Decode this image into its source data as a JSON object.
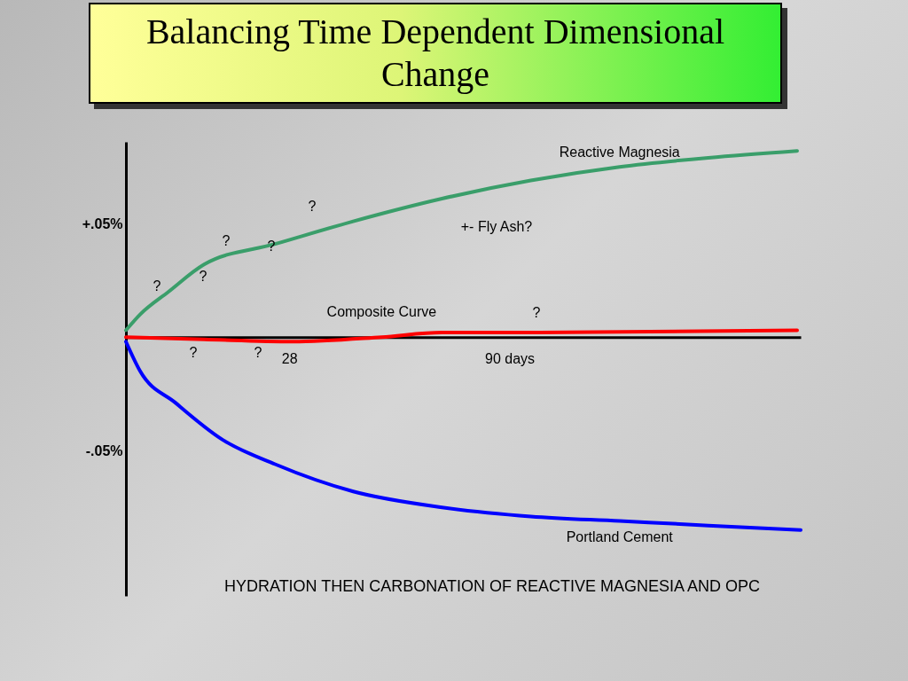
{
  "chart_data": {
    "type": "line",
    "title": "Balancing Time Dependent Dimensional Change",
    "xlim": [
      -18,
      172
    ],
    "xticks": [
      {
        "value": 28,
        "label": "28"
      },
      {
        "value": 90,
        "label": "90 days"
      }
    ],
    "ylim": [
      -0.114,
      0.086
    ],
    "yticks": [
      {
        "value": 0.05,
        "label": "+.05%"
      },
      {
        "value": -0.05,
        "label": "-.05%"
      }
    ],
    "series": [
      {
        "name": "Reactive Magnesia",
        "color": "#3a9e6a",
        "x": [
          -18,
          -14,
          -6,
          4,
          24,
          46,
          71,
          96,
          121,
          146,
          171
        ],
        "values": [
          0.003,
          0.01,
          0.02,
          0.032,
          0.041,
          0.051,
          0.061,
          0.069,
          0.075,
          0.079,
          0.082
        ]
      },
      {
        "name": "Composite Curve",
        "color": "#ff0000",
        "x": [
          -18,
          4,
          29,
          54,
          71,
          96,
          171
        ],
        "values": [
          0,
          -0.001,
          -0.002,
          0,
          0.002,
          0.002,
          0.003
        ]
      },
      {
        "name": "Portland Cement",
        "color": "#0000ff",
        "x": [
          -18,
          -14,
          -4,
          9,
          24,
          46,
          71,
          96,
          121,
          146,
          172
        ],
        "values": [
          -0.002,
          -0.015,
          -0.029,
          -0.045,
          -0.056,
          -0.068,
          -0.075,
          -0.079,
          -0.081,
          -0.083,
          -0.085
        ]
      }
    ],
    "annotations": [
      "?",
      "?",
      "?",
      "?",
      "?",
      "?",
      "?",
      "?",
      "+- Fly Ash?",
      "HYDRATION THEN CARBONATION OF REACTIVE MAGNESIA AND OPC"
    ]
  }
}
